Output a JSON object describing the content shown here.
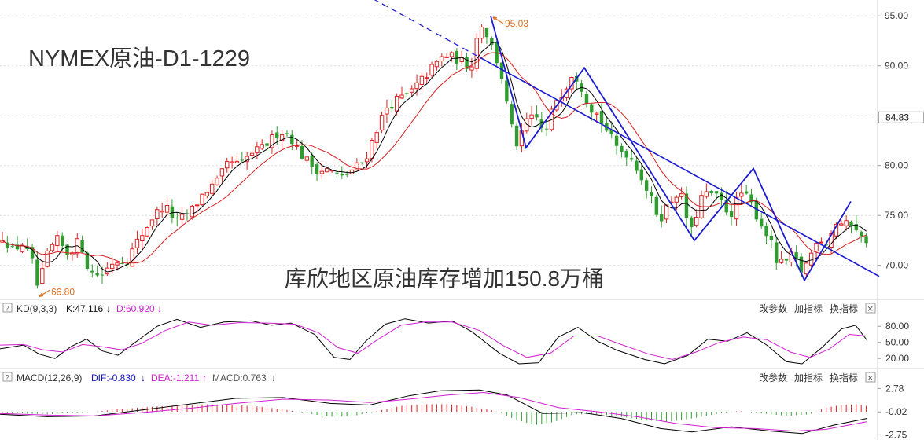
{
  "chart_data": {
    "type": "candlestick",
    "title": "NYMEX原油-D1-1229",
    "annotation": "库欣地区原油库存增加150.8万桶",
    "y_ticks": [
      "95.00",
      "90.00",
      "85.00",
      "80.00",
      "75.00",
      "70.00"
    ],
    "ylim": [
      67.3,
      96.2
    ],
    "current_price_label": "84.83",
    "current_price": 84.83,
    "high_label": "95.03",
    "high_value": 95.03,
    "low_label": "66.80",
    "low_value": 66.8,
    "price_points": [
      [
        0,
        71.8
      ],
      [
        10,
        73.0
      ],
      [
        22,
        71.5
      ],
      [
        35,
        72.2
      ],
      [
        48,
        70.2
      ],
      [
        55,
        67.5
      ],
      [
        65,
        70.8
      ],
      [
        78,
        72.6
      ],
      [
        92,
        71.2
      ],
      [
        108,
        72.5
      ],
      [
        120,
        69.3
      ],
      [
        135,
        69.0
      ],
      [
        150,
        70.4
      ],
      [
        168,
        70.6
      ],
      [
        182,
        72.5
      ],
      [
        200,
        74.8
      ],
      [
        215,
        76.0
      ],
      [
        232,
        74.3
      ],
      [
        250,
        75.5
      ],
      [
        265,
        77.2
      ],
      [
        282,
        78.3
      ],
      [
        298,
        80.4
      ],
      [
        312,
        80.0
      ],
      [
        325,
        81.2
      ],
      [
        338,
        81.6
      ],
      [
        350,
        82.5
      ],
      [
        362,
        83.5
      ],
      [
        375,
        83.0
      ],
      [
        388,
        81.2
      ],
      [
        400,
        80.2
      ],
      [
        412,
        79.5
      ],
      [
        425,
        79.6
      ],
      [
        440,
        78.7
      ],
      [
        455,
        79.6
      ],
      [
        470,
        80.5
      ],
      [
        485,
        83.6
      ],
      [
        498,
        85.8
      ],
      [
        512,
        86.6
      ],
      [
        526,
        87.1
      ],
      [
        540,
        88.3
      ],
      [
        556,
        89.8
      ],
      [
        572,
        91.1
      ],
      [
        590,
        90.6
      ],
      [
        605,
        89.8
      ],
      [
        617,
        94.5
      ],
      [
        625,
        93.2
      ],
      [
        635,
        91.3
      ],
      [
        645,
        88.7
      ],
      [
        655,
        84.2
      ],
      [
        665,
        81.8
      ],
      [
        676,
        84.5
      ],
      [
        688,
        84.8
      ],
      [
        700,
        83.0
      ],
      [
        712,
        86.5
      ],
      [
        724,
        87.6
      ],
      [
        735,
        89.5
      ],
      [
        745,
        88.1
      ],
      [
        755,
        86.1
      ],
      [
        765,
        85.2
      ],
      [
        778,
        83.5
      ],
      [
        792,
        81.6
      ],
      [
        805,
        81.2
      ],
      [
        818,
        79.6
      ],
      [
        832,
        77.0
      ],
      [
        845,
        74.6
      ],
      [
        858,
        76.3
      ],
      [
        870,
        77.6
      ],
      [
        885,
        73.2
      ],
      [
        898,
        76.8
      ],
      [
        910,
        77.2
      ],
      [
        922,
        76.5
      ],
      [
        935,
        75.0
      ],
      [
        948,
        77.3
      ],
      [
        960,
        76.4
      ],
      [
        972,
        74.4
      ],
      [
        985,
        72.7
      ],
      [
        995,
        70.0
      ],
      [
        1005,
        70.3
      ],
      [
        1015,
        71.0
      ],
      [
        1025,
        69.4
      ],
      [
        1035,
        70.5
      ],
      [
        1045,
        72.8
      ],
      [
        1058,
        72.3
      ],
      [
        1070,
        74.3
      ],
      [
        1082,
        74.0
      ],
      [
        1092,
        74.4
      ],
      [
        1102,
        72.6
      ]
    ],
    "trend_line": {
      "from": [
        463,
        97.2
      ],
      "to": [
        1118,
        68.9
      ]
    },
    "zigzag": [
      [
        624,
        95.0
      ],
      [
        669,
        81.8
      ],
      [
        743,
        89.8
      ],
      [
        883,
        72.5
      ],
      [
        958,
        79.7
      ],
      [
        1023,
        68.5
      ],
      [
        1082,
        76.4
      ]
    ],
    "kd": {
      "label": "KD(9,3,3)",
      "k_label": "K:47.116",
      "d_label": "D:60.920",
      "y_ticks": [
        "80.00",
        "50.00",
        "20.00"
      ],
      "k": [
        [
          0,
          38
        ],
        [
          30,
          45
        ],
        [
          50,
          28
        ],
        [
          70,
          20
        ],
        [
          90,
          42
        ],
        [
          110,
          56
        ],
        [
          130,
          34
        ],
        [
          150,
          26
        ],
        [
          170,
          48
        ],
        [
          200,
          80
        ],
        [
          225,
          93
        ],
        [
          255,
          78
        ],
        [
          285,
          88
        ],
        [
          320,
          90
        ],
        [
          345,
          82
        ],
        [
          370,
          86
        ],
        [
          400,
          65
        ],
        [
          425,
          22
        ],
        [
          445,
          18
        ],
        [
          465,
          52
        ],
        [
          490,
          84
        ],
        [
          515,
          94
        ],
        [
          545,
          86
        ],
        [
          575,
          90
        ],
        [
          600,
          70
        ],
        [
          635,
          30
        ],
        [
          660,
          10
        ],
        [
          685,
          12
        ],
        [
          710,
          60
        ],
        [
          735,
          78
        ],
        [
          760,
          52
        ],
        [
          785,
          35
        ],
        [
          820,
          18
        ],
        [
          845,
          10
        ],
        [
          875,
          26
        ],
        [
          900,
          56
        ],
        [
          925,
          52
        ],
        [
          950,
          68
        ],
        [
          975,
          45
        ],
        [
          1000,
          14
        ],
        [
          1020,
          10
        ],
        [
          1045,
          40
        ],
        [
          1070,
          75
        ],
        [
          1088,
          82
        ],
        [
          1102,
          55
        ]
      ],
      "d": [
        [
          0,
          45
        ],
        [
          30,
          46
        ],
        [
          55,
          36
        ],
        [
          80,
          32
        ],
        [
          105,
          46
        ],
        [
          130,
          42
        ],
        [
          155,
          36
        ],
        [
          180,
          48
        ],
        [
          210,
          72
        ],
        [
          240,
          88
        ],
        [
          270,
          82
        ],
        [
          305,
          87
        ],
        [
          340,
          86
        ],
        [
          375,
          84
        ],
        [
          405,
          68
        ],
        [
          430,
          40
        ],
        [
          455,
          30
        ],
        [
          480,
          55
        ],
        [
          510,
          82
        ],
        [
          540,
          88
        ],
        [
          575,
          88
        ],
        [
          610,
          72
        ],
        [
          640,
          44
        ],
        [
          670,
          22
        ],
        [
          700,
          30
        ],
        [
          730,
          62
        ],
        [
          760,
          62
        ],
        [
          790,
          46
        ],
        [
          825,
          28
        ],
        [
          855,
          18
        ],
        [
          885,
          32
        ],
        [
          915,
          50
        ],
        [
          945,
          60
        ],
        [
          975,
          55
        ],
        [
          1005,
          32
        ],
        [
          1030,
          22
        ],
        [
          1055,
          38
        ],
        [
          1080,
          65
        ],
        [
          1102,
          62
        ]
      ]
    },
    "macd": {
      "label": "MACD(12,26,9)",
      "dif_label": "DIF:-0.830",
      "dea_label": "DEA:-1.211",
      "macd_label": "MACD:0.763",
      "y_ticks": [
        "2.78",
        "-0.02",
        "-2.75"
      ],
      "dif": [
        [
          0,
          -0.3
        ],
        [
          60,
          -0.6
        ],
        [
          120,
          -0.5
        ],
        [
          180,
          0.2
        ],
        [
          240,
          0.9
        ],
        [
          300,
          1.6
        ],
        [
          360,
          1.7
        ],
        [
          420,
          1.0
        ],
        [
          470,
          0.8
        ],
        [
          520,
          1.9
        ],
        [
          560,
          2.5
        ],
        [
          610,
          2.6
        ],
        [
          645,
          2.0
        ],
        [
          690,
          -0.2
        ],
        [
          740,
          -0.1
        ],
        [
          790,
          -0.8
        ],
        [
          840,
          -2.0
        ],
        [
          880,
          -2.4
        ],
        [
          930,
          -1.8
        ],
        [
          980,
          -2.3
        ],
        [
          1020,
          -2.6
        ],
        [
          1060,
          -1.6
        ],
        [
          1102,
          -0.8
        ]
      ],
      "dea": [
        [
          0,
          -0.2
        ],
        [
          60,
          -0.4
        ],
        [
          120,
          -0.5
        ],
        [
          180,
          -0.1
        ],
        [
          240,
          0.4
        ],
        [
          300,
          1.0
        ],
        [
          360,
          1.5
        ],
        [
          420,
          1.4
        ],
        [
          470,
          1.1
        ],
        [
          520,
          1.5
        ],
        [
          570,
          2.0
        ],
        [
          615,
          2.3
        ],
        [
          660,
          1.7
        ],
        [
          710,
          0.5
        ],
        [
          760,
          0.0
        ],
        [
          810,
          -0.6
        ],
        [
          860,
          -1.4
        ],
        [
          910,
          -1.9
        ],
        [
          960,
          -2.0
        ],
        [
          1010,
          -2.3
        ],
        [
          1050,
          -2.1
        ],
        [
          1102,
          -1.2
        ]
      ],
      "hist": [
        [
          0,
          -0.1
        ],
        [
          30,
          -0.2
        ],
        [
          60,
          -0.3
        ],
        [
          90,
          -0.1
        ],
        [
          120,
          0.0
        ],
        [
          150,
          0.3
        ],
        [
          180,
          0.5
        ],
        [
          210,
          0.7
        ],
        [
          240,
          0.8
        ],
        [
          270,
          0.9
        ],
        [
          300,
          0.8
        ],
        [
          330,
          0.6
        ],
        [
          360,
          0.3
        ],
        [
          390,
          -0.2
        ],
        [
          420,
          -0.6
        ],
        [
          450,
          -0.5
        ],
        [
          480,
          0.1
        ],
        [
          510,
          0.7
        ],
        [
          540,
          0.9
        ],
        [
          570,
          0.9
        ],
        [
          600,
          0.6
        ],
        [
          630,
          0.1
        ],
        [
          655,
          -0.9
        ],
        [
          680,
          -1.6
        ],
        [
          705,
          -1.2
        ],
        [
          730,
          -0.3
        ],
        [
          760,
          -0.3
        ],
        [
          790,
          -0.6
        ],
        [
          820,
          -1.0
        ],
        [
          850,
          -1.2
        ],
        [
          880,
          -0.8
        ],
        [
          910,
          -0.3
        ],
        [
          940,
          0.1
        ],
        [
          970,
          -0.2
        ],
        [
          1000,
          -0.5
        ],
        [
          1030,
          -0.3
        ],
        [
          1050,
          0.5
        ],
        [
          1070,
          0.8
        ],
        [
          1090,
          0.9
        ],
        [
          1102,
          0.7
        ]
      ]
    }
  },
  "ui": {
    "help_symbol": "?",
    "close_symbol": "✕",
    "change_params": "改参数",
    "add_indicator": "加指标",
    "switch_indicator": "换指标",
    "down_arrow": "↓",
    "up_arrow": "↑"
  },
  "colors": {
    "up": "#e02020",
    "down": "#2e9c2e",
    "ma_short": "#000000",
    "ma_long": "#d42020",
    "trend": "#1a1ad0",
    "k_line": "#000000",
    "d_line": "#d020d0",
    "macd_label": "#1010c8",
    "dea_label": "#d020d0",
    "annotation_orange": "#e07020"
  }
}
